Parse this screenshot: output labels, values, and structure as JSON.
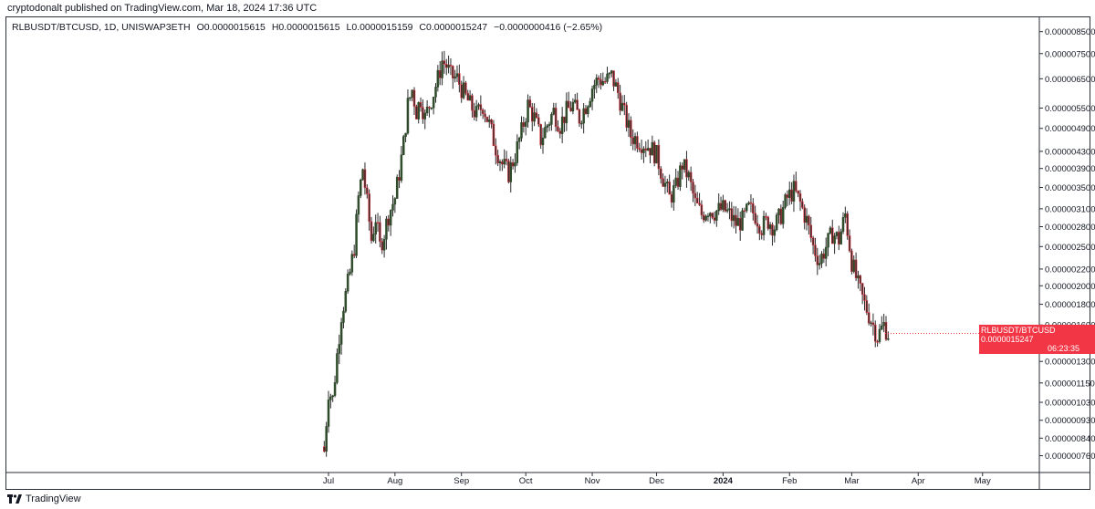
{
  "header": {
    "published": "cryptodonalt published on TradingView.com, Mar 18, 2024 17:36 UTC"
  },
  "legend": {
    "symbol": "RLBUSDT/BTCUSD, 1D, UNISWAP3ETH",
    "open": "O0.0000015615",
    "high": "H0.0000015615",
    "low": "L0.0000015159",
    "close": "C0.0000015247",
    "change": "−0.0000000416 (−2.65%)"
  },
  "price_tag": {
    "symbol": "RLBUSDT/BTCUSD",
    "value": "0.0000015247",
    "countdown": "06:23:35"
  },
  "footer": {
    "brand": "TradingView"
  },
  "colors": {
    "up": "#2e4a2a",
    "down": "#f23645",
    "bodyDark": "#3d2b2b",
    "axis": "#2a2e39"
  },
  "chart_data": {
    "type": "candlestick",
    "title": "RLBUSDT/BTCUSD, 1D, UNISWAP3ETH",
    "scale": "log",
    "ylim": [
      7.2e-07,
      8.8e-06
    ],
    "y_ticks": [
      "0.0000085000",
      "0.0000075000",
      "0.0000065000",
      "0.0000055000",
      "0.0000049000",
      "0.0000043000",
      "0.0000039000",
      "0.0000035000",
      "0.0000031000",
      "0.0000028000",
      "0.0000025000",
      "0.0000022000",
      "0.0000020000",
      "0.0000018000",
      "0.0000016000",
      "0.0000013000",
      "0.0000011500",
      "0.0000010300",
      "0.0000009300",
      "0.0000008400",
      "0.0000007600"
    ],
    "x_ticks": [
      {
        "label": "Jul",
        "bold": false
      },
      {
        "label": "Aug",
        "bold": false
      },
      {
        "label": "Sep",
        "bold": false
      },
      {
        "label": "Oct",
        "bold": false
      },
      {
        "label": "Nov",
        "bold": false
      },
      {
        "label": "Dec",
        "bold": false
      },
      {
        "label": "2024",
        "bold": true
      },
      {
        "label": "Feb",
        "bold": false
      },
      {
        "label": "Mar",
        "bold": false
      },
      {
        "label": "Apr",
        "bold": false
      },
      {
        "label": "May",
        "bold": false
      }
    ],
    "last_close": 1.5247e-06,
    "close_points": [
      [
        "2023-06-28",
        8e-07
      ],
      [
        "2023-06-29",
        7.8e-07
      ],
      [
        "2023-07-01",
        1.1e-06
      ],
      [
        "2023-07-03",
        1.05e-06
      ],
      [
        "2023-07-05",
        1.35e-06
      ],
      [
        "2023-07-07",
        1.7e-06
      ],
      [
        "2023-07-09",
        1.9e-06
      ],
      [
        "2023-07-11",
        2.15e-06
      ],
      [
        "2023-07-13",
        2.5e-06
      ],
      [
        "2023-07-15",
        3.3e-06
      ],
      [
        "2023-07-17",
        3.9e-06
      ],
      [
        "2023-07-19",
        3.2e-06
      ],
      [
        "2023-07-21",
        2.6e-06
      ],
      [
        "2023-07-23",
        2.95e-06
      ],
      [
        "2023-07-25",
        2.5e-06
      ],
      [
        "2023-07-27",
        2.7e-06
      ],
      [
        "2023-07-29",
        3e-06
      ],
      [
        "2023-08-01",
        3.3e-06
      ],
      [
        "2023-08-03",
        3.8e-06
      ],
      [
        "2023-08-05",
        4.5e-06
      ],
      [
        "2023-08-07",
        5.6e-06
      ],
      [
        "2023-08-09",
        6.1e-06
      ],
      [
        "2023-08-11",
        5.4e-06
      ],
      [
        "2023-08-13",
        5.8e-06
      ],
      [
        "2023-08-15",
        5.2e-06
      ],
      [
        "2023-08-17",
        5.6e-06
      ],
      [
        "2023-08-19",
        6e-06
      ],
      [
        "2023-08-21",
        6.5e-06
      ],
      [
        "2023-08-23",
        7.2e-06
      ],
      [
        "2023-08-25",
        7e-06
      ],
      [
        "2023-08-27",
        6.6e-06
      ],
      [
        "2023-08-30",
        6.5e-06
      ],
      [
        "2023-09-02",
        6e-06
      ],
      [
        "2023-09-05",
        5.6e-06
      ],
      [
        "2023-09-08",
        5.3e-06
      ],
      [
        "2023-09-11",
        5.6e-06
      ],
      [
        "2023-09-14",
        5e-06
      ],
      [
        "2023-09-17",
        4.4e-06
      ],
      [
        "2023-09-20",
        4e-06
      ],
      [
        "2023-09-23",
        3.8e-06
      ],
      [
        "2023-09-26",
        4.2e-06
      ],
      [
        "2023-09-29",
        4.8e-06
      ],
      [
        "2023-10-02",
        5.6e-06
      ],
      [
        "2023-10-05",
        5.2e-06
      ],
      [
        "2023-10-08",
        4.6e-06
      ],
      [
        "2023-10-11",
        5e-06
      ],
      [
        "2023-10-14",
        5.4e-06
      ],
      [
        "2023-10-17",
        5e-06
      ],
      [
        "2023-10-20",
        5.4e-06
      ],
      [
        "2023-10-23",
        5.6e-06
      ],
      [
        "2023-10-26",
        5.2e-06
      ],
      [
        "2023-10-29",
        5.6e-06
      ],
      [
        "2023-11-01",
        6.2e-06
      ],
      [
        "2023-11-04",
        6.5e-06
      ],
      [
        "2023-11-07",
        6.4e-06
      ],
      [
        "2023-11-10",
        6.6e-06
      ],
      [
        "2023-11-13",
        6e-06
      ],
      [
        "2023-11-16",
        5.3e-06
      ],
      [
        "2023-11-19",
        4.7e-06
      ],
      [
        "2023-11-22",
        4.6e-06
      ],
      [
        "2023-11-25",
        4.5e-06
      ],
      [
        "2023-11-28",
        4.4e-06
      ],
      [
        "2023-12-01",
        4.2e-06
      ],
      [
        "2023-12-04",
        3.7e-06
      ],
      [
        "2023-12-07",
        3.3e-06
      ],
      [
        "2023-12-10",
        3.5e-06
      ],
      [
        "2023-12-13",
        4e-06
      ],
      [
        "2023-12-16",
        3.7e-06
      ],
      [
        "2023-12-19",
        3.2e-06
      ],
      [
        "2023-12-22",
        3e-06
      ],
      [
        "2023-12-25",
        3.1e-06
      ],
      [
        "2023-12-28",
        3.05e-06
      ],
      [
        "2024-01-01",
        3.1e-06
      ],
      [
        "2024-01-04",
        3e-06
      ],
      [
        "2024-01-07",
        2.85e-06
      ],
      [
        "2024-01-10",
        2.9e-06
      ],
      [
        "2024-01-13",
        3.1e-06
      ],
      [
        "2024-01-16",
        3e-06
      ],
      [
        "2024-01-19",
        2.8e-06
      ],
      [
        "2024-01-22",
        2.9e-06
      ],
      [
        "2024-01-25",
        2.8e-06
      ],
      [
        "2024-01-28",
        3e-06
      ],
      [
        "2024-01-31",
        3.3e-06
      ],
      [
        "2024-02-03",
        3.45e-06
      ],
      [
        "2024-02-06",
        3.2e-06
      ],
      [
        "2024-02-09",
        2.9e-06
      ],
      [
        "2024-02-12",
        2.5e-06
      ],
      [
        "2024-02-15",
        2.3e-06
      ],
      [
        "2024-02-18",
        2.5e-06
      ],
      [
        "2024-02-21",
        2.7e-06
      ],
      [
        "2024-02-24",
        2.6e-06
      ],
      [
        "2024-02-27",
        3e-06
      ],
      [
        "2024-03-01",
        2.3e-06
      ],
      [
        "2024-03-04",
        2e-06
      ],
      [
        "2024-03-07",
        1.8e-06
      ],
      [
        "2024-03-10",
        1.65e-06
      ],
      [
        "2024-03-13",
        1.5e-06
      ],
      [
        "2024-03-16",
        1.6e-06
      ],
      [
        "2024-03-18",
        1.5247e-06
      ]
    ]
  }
}
